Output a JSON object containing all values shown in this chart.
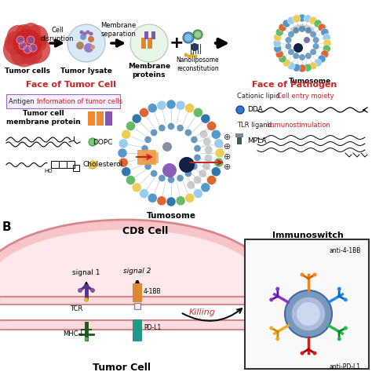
{
  "bg_color": "#ffffff",
  "face_tumor_title": "Face of Tumor Cell",
  "face_pathogen_title": "Face of Pathogen",
  "antigen_text1": "Antigen : ",
  "antigen_text2": "Information of tumor cells",
  "membrane_protein_label": "Tumor cell\nmembrane protein",
  "dopc_label": "DOPC",
  "cholesterol_label": "Cholesterol",
  "cationic_text1": "Cationic lipid : ",
  "cationic_text2": "Cell entry moiety",
  "dda_label": "DDA",
  "tlr_text1": "TLR ligand: ",
  "tlr_text2": "Immunostimulation",
  "mpla_label": "MPLA",
  "tumosome_label": "Tumosome",
  "cd8_label": "CD8 Cell",
  "tumor_cell_label": "Tumor Cell",
  "immunoswitch_label": "Immunoswitch",
  "signal1_label": "signal 1",
  "signal2_label": "signal 2",
  "tcr_label": "TCR",
  "mhc_label": "MHC-I",
  "bb_label": "4-1BB",
  "pdl1_label": "PD-L1",
  "killing_label": "Killing",
  "anti4bb_label": "anti-4-1BB",
  "antipd_label": "anti-PD-L1",
  "panel_b_label": "B",
  "top_labels": [
    "Tumor cells",
    "Tumor lysate",
    "Membrane\nproteins",
    "Tumosome"
  ],
  "top_sublabels": [
    "Cell\ndisruption",
    "Membrane\nseparation",
    "Nanoliposome\nreconstitution"
  ]
}
